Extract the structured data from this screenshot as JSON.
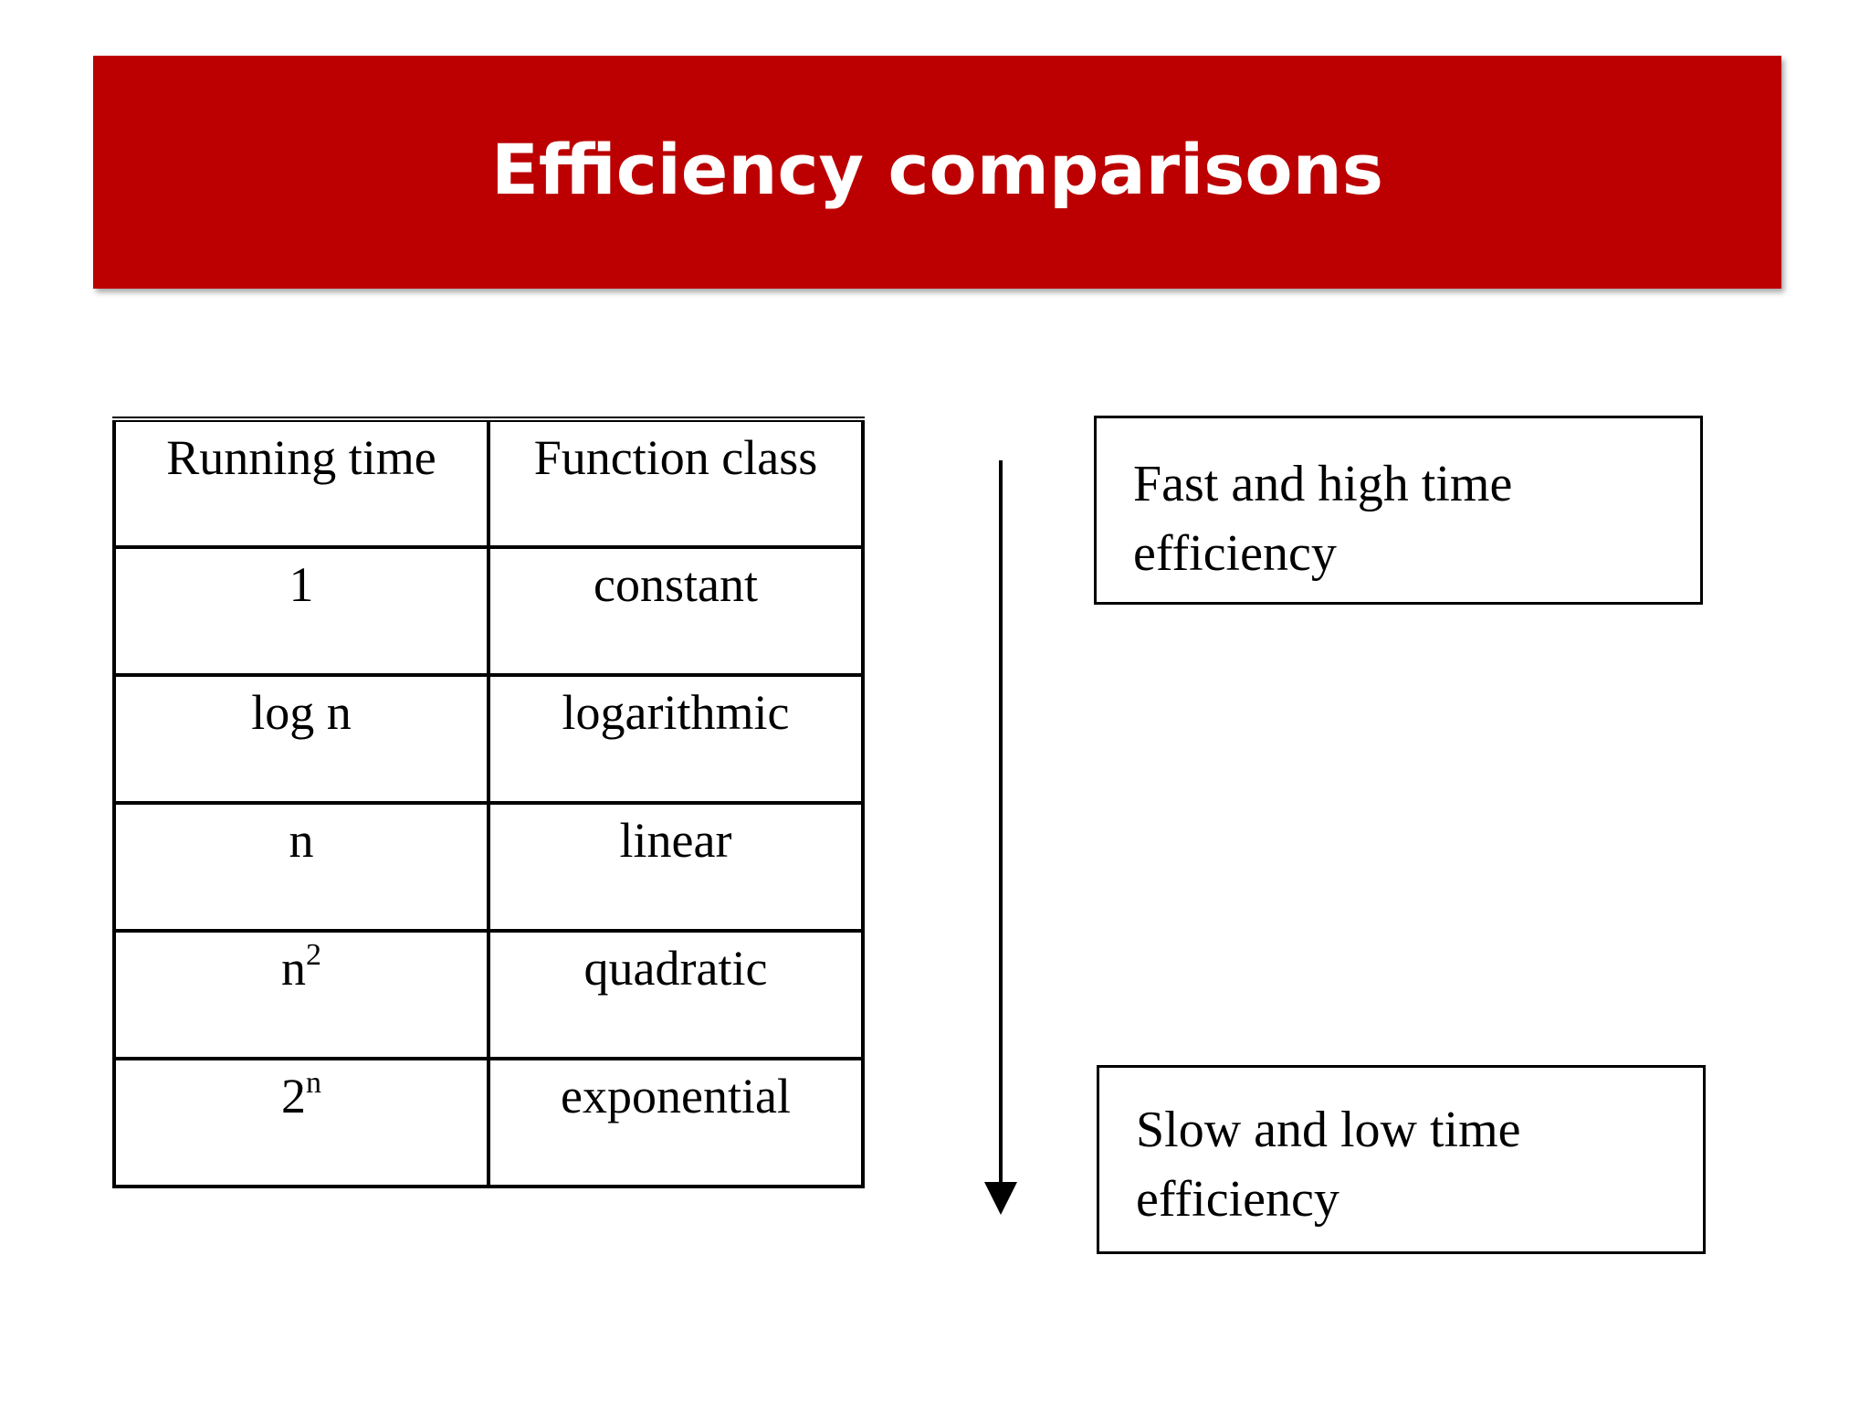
{
  "title": "Efficiency comparisons",
  "table": {
    "headers": [
      "Running time",
      "Function class"
    ],
    "rows": [
      {
        "running_time": "1",
        "sup": "",
        "function_class": "constant"
      },
      {
        "running_time": "log n",
        "sup": "",
        "function_class": "logarithmic"
      },
      {
        "running_time": "n",
        "sup": "",
        "function_class": "linear"
      },
      {
        "running_time": "n",
        "sup": "2",
        "function_class": "quadratic"
      },
      {
        "running_time": "2",
        "sup": "n",
        "function_class": "exponential"
      }
    ]
  },
  "arrow": {
    "direction": "down",
    "icon": "arrow-down-icon"
  },
  "notes": {
    "top": {
      "line1": "Fast and high time",
      "line2": "efficiency"
    },
    "bottom": {
      "line1": "Slow and low time",
      "line2": "efficiency"
    }
  },
  "colors": {
    "title_bar": "#bc0001",
    "title_text": "#ffffff"
  }
}
